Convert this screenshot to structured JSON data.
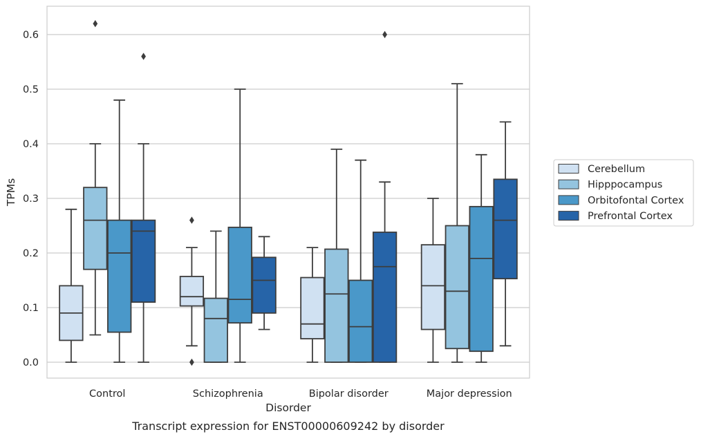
{
  "chart_data": {
    "type": "box",
    "xlabel": "Disorder",
    "ylabel": "TPMs",
    "caption": "Transcript expression for ENST00000609242 by disorder",
    "categories": [
      "Control",
      "Schizophrenia",
      "Bipolar disorder",
      "Major depression"
    ],
    "y_ticks": [
      "0.0",
      "0.1",
      "0.2",
      "0.3",
      "0.4",
      "0.5",
      "0.6"
    ],
    "ylim": [
      -0.03,
      0.65
    ],
    "grid": "horizontal",
    "legend_position": "right",
    "series": [
      {
        "name": "Cerebellum",
        "color": "#d0e1f2",
        "boxes": [
          {
            "whisker_low": 0.0,
            "q1": 0.04,
            "median": 0.09,
            "q3": 0.14,
            "whisker_high": 0.28,
            "outliers": []
          },
          {
            "whisker_low": 0.03,
            "q1": 0.103,
            "median": 0.12,
            "q3": 0.157,
            "whisker_high": 0.21,
            "outliers": [
              0.26,
              0.0
            ]
          },
          {
            "whisker_low": 0.0,
            "q1": 0.043,
            "median": 0.07,
            "q3": 0.155,
            "whisker_high": 0.21,
            "outliers": []
          },
          {
            "whisker_low": 0.0,
            "q1": 0.06,
            "median": 0.14,
            "q3": 0.215,
            "whisker_high": 0.3,
            "outliers": []
          }
        ]
      },
      {
        "name": "Hipppocampus",
        "color": "#94c4df",
        "boxes": [
          {
            "whisker_low": 0.05,
            "q1": 0.17,
            "median": 0.26,
            "q3": 0.32,
            "whisker_high": 0.4,
            "outliers": [
              0.62
            ]
          },
          {
            "whisker_low": 0.0,
            "q1": 0.0,
            "median": 0.08,
            "q3": 0.117,
            "whisker_high": 0.24,
            "outliers": []
          },
          {
            "whisker_low": 0.0,
            "q1": 0.0,
            "median": 0.125,
            "q3": 0.207,
            "whisker_high": 0.39,
            "outliers": []
          },
          {
            "whisker_low": 0.0,
            "q1": 0.025,
            "median": 0.13,
            "q3": 0.25,
            "whisker_high": 0.51,
            "outliers": []
          }
        ]
      },
      {
        "name": "Orbitofontal Cortex",
        "color": "#4a98c9",
        "boxes": [
          {
            "whisker_low": 0.0,
            "q1": 0.055,
            "median": 0.2,
            "q3": 0.26,
            "whisker_high": 0.48,
            "outliers": []
          },
          {
            "whisker_low": 0.0,
            "q1": 0.072,
            "median": 0.115,
            "q3": 0.247,
            "whisker_high": 0.5,
            "outliers": []
          },
          {
            "whisker_low": 0.0,
            "q1": 0.0,
            "median": 0.065,
            "q3": 0.15,
            "whisker_high": 0.37,
            "outliers": []
          },
          {
            "whisker_low": 0.0,
            "q1": 0.02,
            "median": 0.19,
            "q3": 0.285,
            "whisker_high": 0.38,
            "outliers": []
          }
        ]
      },
      {
        "name": "Prefrontal Cortex",
        "color": "#2664a8",
        "boxes": [
          {
            "whisker_low": 0.0,
            "q1": 0.11,
            "median": 0.24,
            "q3": 0.26,
            "whisker_high": 0.4,
            "outliers": [
              0.56
            ]
          },
          {
            "whisker_low": 0.06,
            "q1": 0.09,
            "median": 0.15,
            "q3": 0.192,
            "whisker_high": 0.23,
            "outliers": []
          },
          {
            "whisker_low": 0.0,
            "q1": 0.0,
            "median": 0.175,
            "q3": 0.238,
            "whisker_high": 0.33,
            "outliers": [
              0.6
            ]
          },
          {
            "whisker_low": 0.03,
            "q1": 0.153,
            "median": 0.26,
            "q3": 0.335,
            "whisker_high": 0.44,
            "outliers": []
          }
        ]
      }
    ]
  }
}
